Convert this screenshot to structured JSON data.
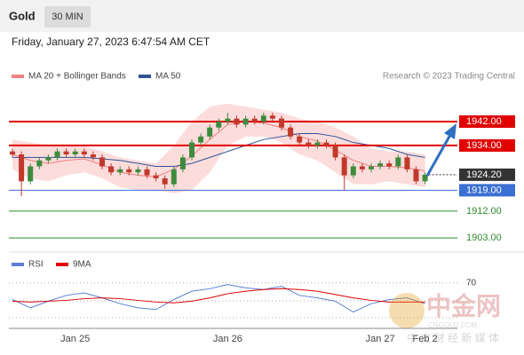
{
  "chart_data": {
    "type": "candlestick",
    "symbol": "Gold",
    "interval": "30 MIN",
    "timestamp": "Friday, January 27, 2023 6:47:54 AM CET",
    "credit": "Research © 2023 Trading Central",
    "ylim": [
      1898,
      1953
    ],
    "up_color": "#3d8b3d",
    "down_color": "#c0392b",
    "categories": [
      null,
      null,
      null,
      null,
      null,
      null,
      null,
      "Jan 25",
      null,
      null,
      null,
      null,
      null,
      null,
      null,
      null,
      null,
      null,
      null,
      null,
      null,
      null,
      null,
      null,
      "Jan 26",
      null,
      null,
      null,
      null,
      null,
      null,
      null,
      null,
      null,
      null,
      null,
      null,
      null,
      null,
      null,
      null,
      "Jan 27",
      null,
      null,
      null,
      null,
      "Feb 2"
    ],
    "candles": [
      [
        1932,
        1933,
        1930,
        1931
      ],
      [
        1931,
        1932,
        1917,
        1922
      ],
      [
        1922,
        1928,
        1921,
        1927
      ],
      [
        1927,
        1930,
        1926,
        1929
      ],
      [
        1929,
        1931,
        1928,
        1930
      ],
      [
        1930,
        1933,
        1929,
        1932
      ],
      [
        1932,
        1933,
        1930,
        1931
      ],
      [
        1931,
        1933,
        1930,
        1932
      ],
      [
        1932,
        1933,
        1930,
        1931
      ],
      [
        1931,
        1932,
        1929,
        1930
      ],
      [
        1930,
        1931,
        1926,
        1927
      ],
      [
        1927,
        1928,
        1924,
        1925
      ],
      [
        1925,
        1927,
        1924,
        1926
      ],
      [
        1926,
        1927,
        1924,
        1925
      ],
      [
        1925,
        1927,
        1924,
        1926
      ],
      [
        1926,
        1927,
        1923,
        1924
      ],
      [
        1924,
        1925,
        1922,
        1923
      ],
      [
        1923,
        1924,
        1919.5,
        1921
      ],
      [
        1921,
        1927,
        1920,
        1926
      ],
      [
        1926,
        1931,
        1925,
        1930
      ],
      [
        1930,
        1936,
        1929,
        1935
      ],
      [
        1935,
        1938,
        1934,
        1937
      ],
      [
        1937,
        1941,
        1936,
        1940
      ],
      [
        1940,
        1943,
        1939,
        1942
      ],
      [
        1942,
        1945,
        1941,
        1943
      ],
      [
        1943,
        1944,
        1940,
        1941
      ],
      [
        1941,
        1944,
        1940,
        1943
      ],
      [
        1943,
        1944,
        1941,
        1942
      ],
      [
        1942,
        1945,
        1941,
        1944
      ],
      [
        1944,
        1945,
        1942,
        1943
      ],
      [
        1943,
        1944,
        1939,
        1940
      ],
      [
        1940,
        1941,
        1936,
        1937
      ],
      [
        1937,
        1938,
        1934,
        1935
      ],
      [
        1935,
        1936,
        1933,
        1934
      ],
      [
        1934,
        1936,
        1933,
        1935
      ],
      [
        1935,
        1936,
        1933,
        1934
      ],
      [
        1934,
        1935,
        1929,
        1930
      ],
      [
        1930,
        1931,
        1919,
        1924
      ],
      [
        1924,
        1928,
        1923,
        1927
      ],
      [
        1927,
        1928,
        1925,
        1926
      ],
      [
        1926,
        1928,
        1925,
        1927
      ],
      [
        1927,
        1929,
        1926,
        1928
      ],
      [
        1928,
        1929,
        1926,
        1927
      ],
      [
        1927,
        1931,
        1926,
        1930
      ],
      [
        1930,
        1931,
        1925,
        1926
      ],
      [
        1926,
        1927,
        1921,
        1922
      ],
      [
        1922,
        1925,
        1921,
        1924.2
      ]
    ],
    "bollinger": {
      "name": "MA 20 + Bollinger Bands",
      "color": "#f08080",
      "fill": "#fddcdc",
      "upper": [
        1936,
        1935,
        1934,
        1934,
        1934,
        1932,
        1930,
        1929,
        1928,
        1934,
        1942,
        1947,
        1948,
        1947,
        1946,
        1945,
        1943,
        1942,
        1940,
        1937,
        1933,
        1932,
        1932,
        1931
      ],
      "lower": [
        1926,
        1923,
        1922,
        1924,
        1925,
        1923,
        1920,
        1919,
        1919,
        1918,
        1919,
        1925,
        1934,
        1937,
        1937,
        1935,
        1931,
        1929,
        1925,
        1921,
        1921,
        1922,
        1921,
        1920
      ],
      "values": [
        1931,
        1929,
        1928,
        1929,
        1929.5,
        1927.5,
        1925,
        1924,
        1923.5,
        1926,
        1930.5,
        1936,
        1941,
        1942,
        1941.5,
        1940,
        1937,
        1935.5,
        1932.5,
        1929,
        1927,
        1927,
        1926.5,
        1925.5
      ]
    },
    "ma50": {
      "name": "MA 50",
      "color": "#2f5496",
      "values": [
        1930,
        1930,
        1930,
        1930,
        1930,
        1929.5,
        1929,
        1928,
        1927,
        1927,
        1928,
        1930,
        1932,
        1934,
        1936,
        1937,
        1938,
        1938,
        1937,
        1935,
        1934,
        1933,
        1931,
        1930
      ]
    },
    "levels": [
      {
        "value": 1942,
        "label": "1942.00",
        "color": "#e00000",
        "style": "box"
      },
      {
        "value": 1934,
        "label": "1934.00",
        "color": "#e00000",
        "style": "box"
      },
      {
        "value": 1919,
        "label": "1919.00",
        "color": "#3b6fd4",
        "style": "box"
      },
      {
        "value": 1912,
        "label": "1912.00",
        "color": "#2e8b2e",
        "style": "text"
      },
      {
        "value": 1903,
        "label": "1903.00",
        "color": "#2e8b2e",
        "style": "text"
      }
    ],
    "last_price": {
      "value": 1924.2,
      "label": "1924.20"
    },
    "rsi": {
      "ylim": [
        10,
        90
      ],
      "yticks": [
        70
      ],
      "series": [
        {
          "name": "RSI",
          "color": "#5b7fd6",
          "values": [
            50,
            40,
            48,
            55,
            58,
            52,
            45,
            40,
            38,
            50,
            60,
            63,
            68,
            64,
            62,
            66,
            55,
            52,
            48,
            35,
            45,
            50,
            52,
            45
          ]
        },
        {
          "name": "9MA",
          "color": "#e00000",
          "values": [
            48,
            47,
            48,
            49,
            51,
            52,
            51,
            49,
            47,
            46,
            48,
            52,
            57,
            60,
            62,
            63,
            62,
            60,
            56,
            52,
            49,
            47,
            47,
            47
          ]
        }
      ]
    },
    "watermark": {
      "title": "中金网",
      "site": "CNGOLD.COM",
      "tagline": "中 文 财 经 新 媒 体"
    }
  }
}
